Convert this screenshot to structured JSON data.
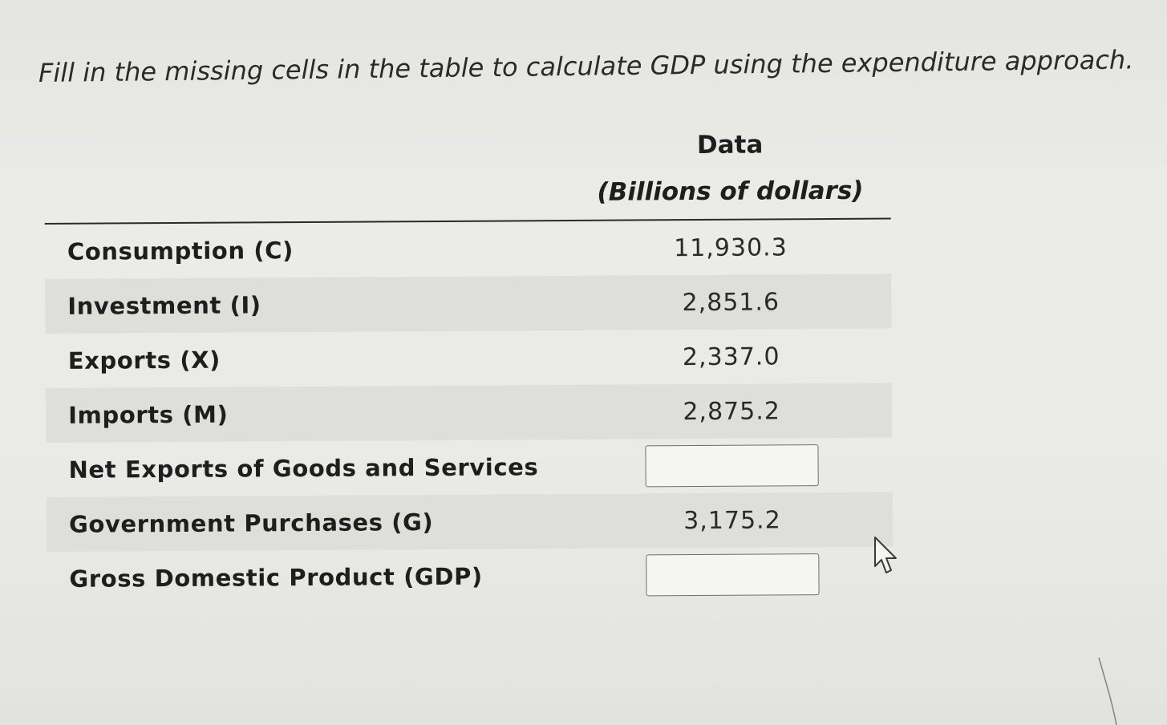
{
  "instruction": "Fill in the missing cells in the table to calculate GDP using the expenditure approach.",
  "table": {
    "header_title": "Data",
    "header_subtitle": "(Billions of dollars)",
    "rows": [
      {
        "label": "Consumption (C)",
        "value": "11,930.3"
      },
      {
        "label": "Investment (I)",
        "value": "2,851.6"
      },
      {
        "label": "Exports (X)",
        "value": "2,337.0"
      },
      {
        "label": "Imports (M)",
        "value": "2,875.2"
      },
      {
        "label": "Net Exports of Goods and Services",
        "value": ""
      },
      {
        "label": "Government Purchases (G)",
        "value": "3,175.2"
      },
      {
        "label": "Gross Domestic Product (GDP)",
        "value": ""
      }
    ]
  },
  "icons": {
    "mouse_pointer": "arrow-cursor-icon"
  },
  "colors": {
    "background": "#e9e9e6",
    "shaded_row": "#dededb",
    "text": "#1e1e1e",
    "input_border": "#6e6e6e"
  }
}
